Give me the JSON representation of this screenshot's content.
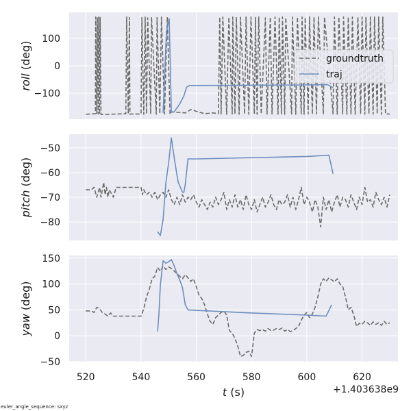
{
  "chart_data": [
    {
      "type": "line",
      "id": "roll",
      "ylabel_italic": "roll",
      "ylabel_rest": " (deg)",
      "xlim": [
        514,
        633
      ],
      "ylim": [
        -195,
        195
      ],
      "yticks": [
        100,
        0,
        -100
      ],
      "ytick_labels": [
        "100",
        "0",
        "−100"
      ],
      "xticks": [
        520,
        540,
        560,
        580,
        600,
        620
      ],
      "show_xtick_labels": false,
      "legend": {
        "position": "top-right",
        "entries": [
          "groundtruth",
          "traj"
        ]
      },
      "series": [
        {
          "name": "groundtruth",
          "style": "dashed",
          "color": "#6b6b6b",
          "x": [
            520,
            523.5,
            523.6,
            524,
            524.2,
            524.5,
            524.7,
            525,
            525.2,
            525.5,
            534.5,
            534.8,
            535.4,
            535.8,
            536,
            536.4,
            540,
            540.3,
            541,
            541.5,
            542,
            542.4,
            543.5,
            543.8,
            545.5,
            545.8,
            546.8,
            547.4,
            548.5,
            549.5,
            550.5,
            551,
            556,
            558,
            563,
            566,
            568,
            568.5,
            569,
            569.6,
            571,
            571.8,
            573,
            573.2,
            574,
            574.5,
            575.5,
            576,
            577.5,
            578,
            579,
            579.8,
            581,
            581.4,
            582,
            582.6,
            583.5,
            585,
            585.6,
            586.8,
            587.4,
            588.5,
            589.6,
            590,
            590.8,
            591.2,
            592,
            592.4,
            594.5,
            594.8,
            596,
            596.6,
            598,
            598.3,
            599,
            599.4,
            600.5,
            601,
            602,
            602.6,
            603.5,
            604.2,
            606,
            606.4,
            609.5,
            610,
            611,
            611.6,
            613,
            613.3,
            614.5,
            615,
            616,
            616.5,
            617.5,
            618.5,
            619.5,
            620,
            621,
            621.4,
            622.5,
            623,
            624,
            624.5,
            625.5,
            626,
            627,
            627.5,
            628.5,
            630
          ],
          "y": [
            -177,
            -175,
            178,
            -176,
            177,
            -176,
            178,
            -177,
            176,
            -178,
            -175,
            178,
            -176,
            176,
            -177,
            -176,
            -176,
            176,
            -177,
            178,
            -176,
            175,
            -176,
            178,
            -177,
            176,
            -175,
            178,
            -176,
            178,
            -177,
            -168,
            -172,
            -160,
            -175,
            -172,
            -175,
            178,
            -176,
            178,
            -177,
            177,
            -176,
            178,
            -176,
            178,
            -177,
            177,
            -176,
            178,
            -177,
            178,
            -176,
            176,
            -177,
            178,
            -176,
            175,
            -177,
            178,
            -176,
            178,
            -177,
            178,
            -176,
            178,
            -177,
            176,
            -176,
            178,
            -177,
            178,
            -176,
            178,
            -177,
            176,
            -176,
            178,
            -177,
            178,
            -176,
            178,
            -177,
            178,
            -176,
            178,
            -177,
            178,
            -176,
            178,
            -177,
            178,
            -176,
            178,
            -177,
            178,
            -176,
            178,
            -177,
            178,
            -176,
            178,
            -177,
            178,
            -176,
            178,
            -177,
            178,
            -176,
            -176
          ]
        },
        {
          "name": "traj",
          "style": "solid",
          "color": "#6c8ebf",
          "x": [
            548,
            549.2,
            550.2,
            551,
            552,
            554,
            555.5,
            556.5,
            557.5,
            560,
            580,
            600,
            607.5,
            609.5
          ],
          "y": [
            -172,
            125,
            172,
            -170,
            -168,
            -140,
            -110,
            -78,
            -72,
            -72,
            -71,
            -70,
            -69,
            -80
          ]
        }
      ]
    },
    {
      "type": "line",
      "id": "pitch",
      "ylabel_italic": "pitch",
      "ylabel_rest": " (deg)",
      "xlim": [
        514,
        633
      ],
      "ylim": [
        -87.5,
        -44.5
      ],
      "yticks": [
        -50,
        -60,
        -70,
        -80
      ],
      "ytick_labels": [
        "−50",
        "−60",
        "−70",
        "−80"
      ],
      "xticks": [
        520,
        540,
        560,
        580,
        600,
        620
      ],
      "show_xtick_labels": false,
      "series": [
        {
          "name": "groundtruth",
          "style": "dashed",
          "color": "#6b6b6b",
          "x": [
            520,
            522,
            523,
            524,
            524.5,
            525,
            525.5,
            526,
            526.5,
            527,
            527.5,
            528,
            528.5,
            529,
            530,
            531,
            532,
            533,
            534,
            535,
            536,
            537,
            538,
            539,
            540,
            540.5,
            541,
            542,
            543,
            544,
            545,
            546,
            547,
            548,
            549,
            550,
            551,
            552,
            553,
            554,
            555,
            556,
            557,
            558,
            559,
            560,
            561,
            562,
            563,
            564,
            565,
            566,
            567,
            568,
            569,
            570,
            571,
            572,
            573,
            574,
            575,
            576,
            577,
            578,
            579,
            580,
            581,
            582,
            583,
            584,
            585,
            586,
            587,
            588,
            589,
            590,
            591,
            592,
            593,
            594,
            595,
            596,
            597,
            598,
            599,
            600,
            601,
            602,
            603,
            604,
            605,
            606,
            607,
            608,
            609,
            610,
            611,
            612,
            613,
            614,
            615,
            616,
            617,
            618,
            619,
            620,
            621,
            622,
            623,
            624,
            625,
            626,
            627,
            628,
            629,
            630
          ],
          "y": [
            -67,
            -67,
            -66,
            -70,
            -68,
            -66,
            -70,
            -67,
            -64,
            -69,
            -66,
            -70,
            -67,
            -68,
            -70,
            -66,
            -66,
            -66,
            -66,
            -66,
            -66,
            -66,
            -66,
            -66,
            -66,
            -69,
            -67,
            -69,
            -68,
            -70,
            -68,
            -71,
            -69,
            -68,
            -70,
            -67,
            -71,
            -73,
            -70,
            -73,
            -69,
            -72,
            -70,
            -71,
            -69,
            -72,
            -74,
            -71,
            -73,
            -75,
            -72,
            -74,
            -70,
            -73,
            -71,
            -68,
            -75,
            -71,
            -74,
            -69,
            -74,
            -71,
            -75,
            -69,
            -73,
            -75,
            -71,
            -76,
            -73,
            -70,
            -74,
            -72,
            -69,
            -73,
            -75,
            -71,
            -73,
            -72,
            -69,
            -74,
            -70,
            -75,
            -71,
            -66,
            -73,
            -70,
            -72,
            -76,
            -71,
            -74,
            -82,
            -70,
            -75,
            -71,
            -76,
            -72,
            -69,
            -74,
            -70,
            -71,
            -74,
            -69,
            -72,
            -75,
            -70,
            -73,
            -66,
            -72,
            -71,
            -74,
            -68,
            -71,
            -73,
            -70,
            -74,
            -69
          ]
        },
        {
          "name": "traj",
          "style": "solid",
          "color": "#6c8ebf",
          "x": [
            546,
            547,
            548,
            549,
            550,
            551,
            552,
            553,
            553.5,
            555,
            555.5,
            556,
            557,
            560,
            580,
            600,
            608,
            609.5
          ],
          "y": [
            -84,
            -85.5,
            -79,
            -64,
            -56,
            -46,
            -54,
            -61,
            -64,
            -68,
            -68,
            -65,
            -54.5,
            -54.5,
            -54,
            -53.5,
            -53,
            -60.5
          ]
        }
      ]
    },
    {
      "type": "line",
      "id": "yaw",
      "ylabel_italic": "yaw",
      "ylabel_rest": " (deg)",
      "xlim": [
        514,
        633
      ],
      "ylim": [
        -50,
        155
      ],
      "yticks": [
        150,
        100,
        50,
        0,
        -50
      ],
      "ytick_labels": [
        "150",
        "100",
        "50",
        "0",
        "−50"
      ],
      "xticks": [
        520,
        540,
        560,
        580,
        600,
        620
      ],
      "xtick_labels": [
        "520",
        "540",
        "560",
        "580",
        "600",
        "620"
      ],
      "show_xtick_labels": true,
      "xlabel_italic": "t",
      "xlabel_rest": " (s)",
      "offset_text": "+1.403638e9",
      "series": [
        {
          "name": "groundtruth",
          "style": "dashed",
          "color": "#6b6b6b",
          "x": [
            520,
            522,
            523,
            524,
            525,
            526,
            527,
            528,
            529,
            530,
            532,
            534,
            536,
            538,
            540,
            540.5,
            541,
            542,
            543,
            544,
            545,
            546,
            547,
            548,
            549,
            550,
            551,
            552,
            553,
            554,
            555,
            556,
            557,
            558,
            559,
            560,
            561,
            562,
            563,
            564,
            565,
            566,
            567,
            568,
            569,
            570,
            571,
            572,
            573,
            574,
            575,
            576,
            577,
            578,
            579,
            580,
            581,
            582,
            583,
            584,
            585,
            586,
            587,
            588,
            589,
            590,
            591,
            592,
            593,
            594,
            595,
            596,
            597,
            598,
            599,
            600,
            601,
            602,
            603,
            604,
            605,
            606,
            607,
            608,
            609,
            610,
            611,
            612,
            613,
            614,
            615,
            616,
            617,
            618,
            619,
            620,
            621,
            622,
            623,
            624,
            625,
            626,
            627,
            628,
            629,
            630
          ],
          "y": [
            48,
            48,
            45,
            55,
            52,
            45,
            42,
            38,
            44,
            38,
            38,
            38,
            38,
            38,
            38,
            45,
            52,
            75,
            90,
            110,
            115,
            132,
            125,
            135,
            128,
            133,
            130,
            125,
            120,
            115,
            110,
            118,
            112,
            105,
            110,
            95,
            78,
            72,
            60,
            42,
            28,
            22,
            35,
            40,
            45,
            48,
            40,
            10,
            5,
            -5,
            -20,
            -40,
            -38,
            -32,
            -30,
            -40,
            5,
            12,
            10,
            12,
            9,
            14,
            10,
            11,
            14,
            12,
            15,
            9,
            12,
            8,
            10,
            14,
            18,
            30,
            40,
            45,
            35,
            42,
            55,
            75,
            100,
            110,
            105,
            112,
            108,
            104,
            110,
            100,
            95,
            75,
            50,
            55,
            40,
            18,
            24,
            22,
            28,
            25,
            20,
            27,
            22,
            25,
            20,
            28,
            22,
            25
          ]
        },
        {
          "name": "traj",
          "style": "solid",
          "color": "#6c8ebf",
          "x": [
            546,
            546.5,
            547,
            548,
            549,
            550,
            551,
            552,
            553,
            554,
            555,
            556,
            557,
            560,
            580,
            600,
            607,
            609
          ],
          "y": [
            8,
            45,
            98,
            145,
            140,
            143,
            147,
            135,
            120,
            108,
            93,
            60,
            50,
            49,
            44,
            40,
            38,
            60
          ]
        }
      ]
    }
  ],
  "footnote": "euler_angle_sequence: sxyz",
  "legend_labels": [
    "groundtruth",
    "traj"
  ],
  "colors": {
    "groundtruth": "#6b6b6b",
    "traj": "#6c8ebf",
    "panel_bg": "#eaeaf2",
    "grid": "#ffffff"
  }
}
